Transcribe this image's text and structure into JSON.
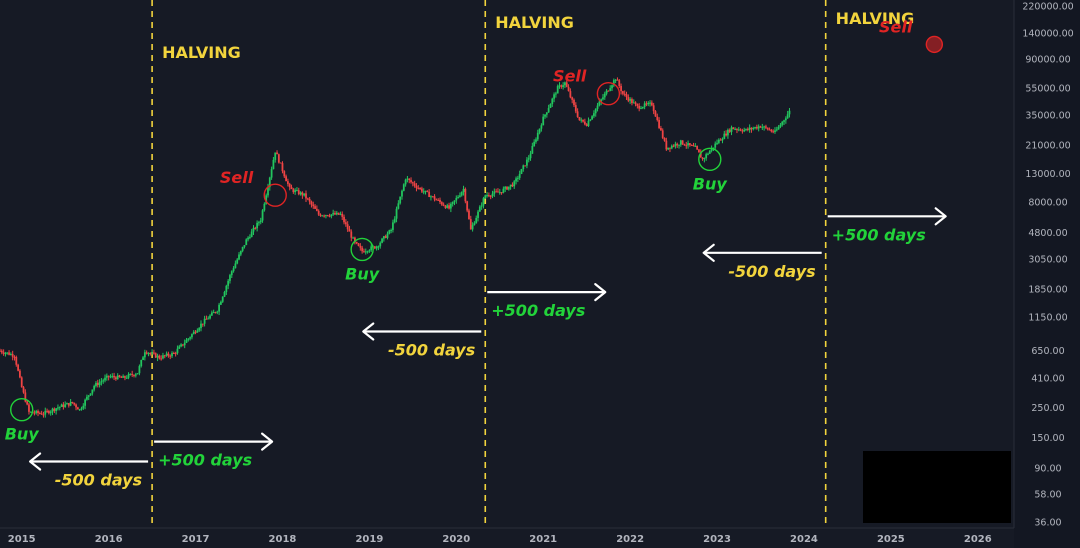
{
  "chart_data": {
    "type": "candlestick",
    "y_scale": "log",
    "ylim": [
      36,
      220000
    ],
    "xlim": [
      "2014-10",
      "2026-06"
    ],
    "grid": false,
    "x_ticks": [
      "2015",
      "2016",
      "2017",
      "2018",
      "2019",
      "2020",
      "2021",
      "2022",
      "2023",
      "2024",
      "2025",
      "2026"
    ],
    "y_ticks": [
      "220000.00",
      "140000.00",
      "90000.00",
      "55000.00",
      "35000.00",
      "21000.00",
      "13000.00",
      "8000.00",
      "4800.00",
      "3050.00",
      "1850.00",
      "1150.00",
      "650.00",
      "410.00",
      "250.00",
      "150.00",
      "90.00",
      "58.00",
      "36.00"
    ],
    "y_tick_values": [
      220000,
      140000,
      90000,
      55000,
      35000,
      21000,
      13000,
      8000,
      4800,
      3050,
      1850,
      1150,
      650,
      410,
      250,
      150,
      90,
      58,
      36
    ],
    "series": [
      {
        "points": [
          [
            "2014-10",
            650
          ],
          [
            "2014-12",
            600
          ],
          [
            "2015-01",
            350
          ],
          [
            "2015-02",
            230
          ],
          [
            "2015-04",
            225
          ],
          [
            "2015-06",
            250
          ],
          [
            "2015-08",
            270
          ],
          [
            "2015-09",
            240
          ],
          [
            "2015-11",
            360
          ],
          [
            "2016-01",
            420
          ],
          [
            "2016-03",
            410
          ],
          [
            "2016-05",
            450
          ],
          [
            "2016-06",
            650
          ],
          [
            "2016-08",
            580
          ],
          [
            "2016-10",
            620
          ],
          [
            "2016-12",
            800
          ],
          [
            "2017-02",
            1050
          ],
          [
            "2017-04",
            1300
          ],
          [
            "2017-06",
            2500
          ],
          [
            "2017-08",
            4200
          ],
          [
            "2017-10",
            6000
          ],
          [
            "2017-12",
            19000
          ],
          [
            "2018-02",
            10000
          ],
          [
            "2018-04",
            9000
          ],
          [
            "2018-06",
            6500
          ],
          [
            "2018-09",
            6500
          ],
          [
            "2018-11",
            4000
          ],
          [
            "2018-12",
            3500
          ],
          [
            "2019-02",
            3800
          ],
          [
            "2019-04",
            5000
          ],
          [
            "2019-06",
            12000
          ],
          [
            "2019-08",
            10000
          ],
          [
            "2019-10",
            8500
          ],
          [
            "2019-12",
            7200
          ],
          [
            "2020-02",
            10000
          ],
          [
            "2020-03",
            5000
          ],
          [
            "2020-05",
            9000
          ],
          [
            "2020-07",
            9500
          ],
          [
            "2020-09",
            11000
          ],
          [
            "2020-11",
            17000
          ],
          [
            "2021-01",
            33000
          ],
          [
            "2021-03",
            55000
          ],
          [
            "2021-04",
            60000
          ],
          [
            "2021-06",
            32000
          ],
          [
            "2021-07",
            30000
          ],
          [
            "2021-09",
            45000
          ],
          [
            "2021-11",
            65000
          ],
          [
            "2021-12",
            50000
          ],
          [
            "2022-02",
            40000
          ],
          [
            "2022-04",
            42000
          ],
          [
            "2022-06",
            20000
          ],
          [
            "2022-08",
            22000
          ],
          [
            "2022-10",
            20000
          ],
          [
            "2022-11",
            16500
          ],
          [
            "2023-01",
            22000
          ],
          [
            "2023-03",
            28000
          ],
          [
            "2023-05",
            27000
          ],
          [
            "2023-07",
            29000
          ],
          [
            "2023-09",
            26000
          ],
          [
            "2023-11",
            37000
          ]
        ]
      }
    ],
    "halvings": [
      {
        "x": "2016-07",
        "label": "HALVING"
      },
      {
        "x": "2020-05",
        "label": "HALVING"
      },
      {
        "x": "2024-04",
        "label": "HALVING"
      }
    ],
    "signals": [
      {
        "kind": "buy",
        "text": "Buy",
        "x": "2015-01",
        "y": 240
      },
      {
        "kind": "sell",
        "text": "Sell",
        "x": "2017-12",
        "y": 9000
      },
      {
        "kind": "buy",
        "text": "Buy",
        "x": "2018-12",
        "y": 3600
      },
      {
        "kind": "sell",
        "text": "Sell",
        "x": "2021-10",
        "y": 50000
      },
      {
        "kind": "buy",
        "text": "Buy",
        "x": "2022-12",
        "y": 16500
      },
      {
        "kind": "sell",
        "text": "Sell",
        "x": "2025-07",
        "y": 115000
      }
    ],
    "offsets": [
      {
        "text": "-500 days",
        "direction": "left",
        "halving": "2016-07",
        "y": 100
      },
      {
        "text": "+500 days",
        "direction": "right",
        "halving": "2016-07",
        "y": 140
      },
      {
        "text": "-500 days",
        "direction": "left",
        "halving": "2020-05",
        "y": 900
      },
      {
        "text": "+500 days",
        "direction": "right",
        "halving": "2020-05",
        "y": 1750
      },
      {
        "text": "-500 days",
        "direction": "left",
        "halving": "2024-04",
        "y": 3400
      },
      {
        "text": "+500 days",
        "direction": "right",
        "halving": "2024-04",
        "y": 6300
      }
    ],
    "colors": {
      "background": "#161a25",
      "up": "#22c55e",
      "down": "#ef4444",
      "halving_line": "#f2d43d",
      "halving_text": "#f2d43d",
      "buy": "#22d33a",
      "sell": "#e02424",
      "arrow": "#ffffff",
      "minus_label": "#f2d43d",
      "plus_label": "#22d33a",
      "axis_text": "#b2b5be"
    }
  }
}
